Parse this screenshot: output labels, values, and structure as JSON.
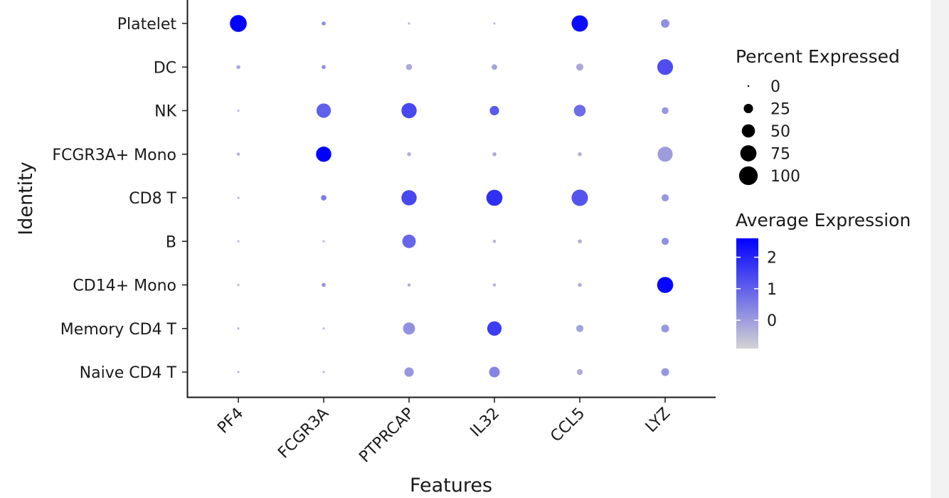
{
  "chart_data": {
    "type": "scatter",
    "subtype": "dot-plot",
    "xlabel": "Features",
    "ylabel": "Identity",
    "features": [
      "PF4",
      "FCGR3A",
      "PTPRCAP",
      "IL32",
      "CCL5",
      "LYZ"
    ],
    "identities": [
      "Naive CD4 T",
      "Memory CD4 T",
      "CD14+ Mono",
      "B",
      "CD8 T",
      "FCGR3A+ Mono",
      "NK",
      "DC",
      "Platelet"
    ],
    "percent_expressed": [
      [
        1,
        1,
        17,
        22,
        7,
        12
      ],
      [
        1,
        1,
        28,
        40,
        10,
        12
      ],
      [
        1,
        3,
        2,
        2,
        3,
        50
      ],
      [
        1,
        1,
        35,
        2,
        3,
        10
      ],
      [
        1,
        6,
        45,
        50,
        52,
        10
      ],
      [
        2,
        45,
        3,
        3,
        3,
        44
      ],
      [
        1,
        40,
        45,
        17,
        27,
        9
      ],
      [
        3,
        3,
        7,
        6,
        10,
        48
      ],
      [
        55,
        3,
        1,
        1,
        52,
        14
      ]
    ],
    "average_expression": [
      [
        -0.5,
        -0.5,
        0.1,
        0.4,
        -0.3,
        0.1
      ],
      [
        -0.5,
        -0.5,
        0.2,
        1.6,
        -0.1,
        0.1
      ],
      [
        -0.5,
        0.2,
        -0.3,
        -0.4,
        -0.3,
        2.5
      ],
      [
        -0.5,
        -0.5,
        0.9,
        -0.4,
        -0.3,
        0.2
      ],
      [
        -0.5,
        0.5,
        1.4,
        1.8,
        1.2,
        0.1
      ],
      [
        -0.4,
        2.6,
        -0.3,
        -0.2,
        -0.3,
        0.0
      ],
      [
        -0.5,
        1.0,
        1.4,
        1.1,
        0.8,
        0.1
      ],
      [
        -0.2,
        0.3,
        -0.2,
        -0.1,
        -0.2,
        1.3
      ],
      [
        2.6,
        0.3,
        -0.5,
        -0.5,
        2.4,
        0.2
      ]
    ],
    "legend": {
      "size_title": "Percent Expressed",
      "size_breaks": [
        "0",
        "25",
        "50",
        "75",
        "100"
      ],
      "size_values": [
        0,
        25,
        50,
        75,
        100
      ],
      "color_title": "Average Expression",
      "color_breaks": [
        "2",
        "1",
        "0"
      ],
      "color_values": [
        2,
        1,
        0
      ],
      "color_min": -0.9,
      "color_max": 2.6,
      "color_low": "#d3d3d3",
      "color_high": "#0000ff",
      "placement": "right"
    }
  }
}
